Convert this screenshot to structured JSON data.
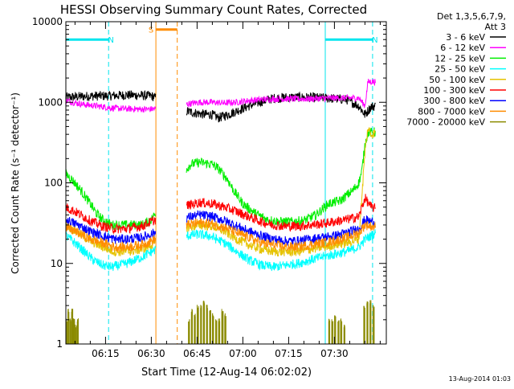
{
  "chart_data": {
    "type": "line",
    "title": "HESSI Observing Summary Count Rates, Corrected",
    "xlabel": "Start Time (12-Aug-14 06:02:02)",
    "ylabel": "Corrected Count Rate (s⁻¹ detector⁻¹)",
    "y_scale": "log",
    "ylim": [
      1,
      10000
    ],
    "xlim_minutes_after_start": [
      0,
      105
    ],
    "start_time_label": "06:02:02",
    "x_ticks": [
      {
        "label": "06:15",
        "minute": 13
      },
      {
        "label": "06:30",
        "minute": 28
      },
      {
        "label": "06:45",
        "minute": 43
      },
      {
        "label": "07:00",
        "minute": 58
      },
      {
        "label": "07:15",
        "minute": 73
      },
      {
        "label": "07:30",
        "minute": 88
      }
    ],
    "y_ticks": [
      {
        "label": "1",
        "value": 1
      },
      {
        "label": "10",
        "value": 10
      },
      {
        "label": "100",
        "value": 100
      },
      {
        "label": "1000",
        "value": 1000
      },
      {
        "label": "10000",
        "value": 10000
      }
    ],
    "legend_header": [
      "Det 1,3,5,6,7,9,",
      "Att 3"
    ],
    "legend_position": "right",
    "markers": [
      {
        "label": "N",
        "color": "#00e5ee",
        "bar_minutes": [
          0,
          14
        ],
        "bar_value": 6000,
        "dashed_line_minute": 14,
        "solid_line_minute": 0
      },
      {
        "label": "N",
        "color": "#00e5ee",
        "bar_minutes": [
          85,
          100.5
        ],
        "bar_value": 6000,
        "dashed_line_minute": 100.5,
        "solid_line_minute": 85
      },
      {
        "label": "S",
        "color": "#ff8c00",
        "bar_minutes": [
          29.5,
          36.5
        ],
        "bar_value": 8000,
        "dashed_line_minute": 36.5,
        "solid_line_minute": 29.5
      }
    ],
    "data_gap_minutes": [
      29.5,
      39.5
    ],
    "series": [
      {
        "name": "3 - 6 keV",
        "color": "#000000",
        "x": [
          0,
          5,
          10,
          14,
          20,
          28,
          39.5,
          42,
          45,
          48,
          50,
          53,
          56,
          60,
          64,
          68,
          72,
          76,
          80,
          84,
          88,
          92,
          96,
          98,
          100,
          101.5
        ],
        "y": [
          1150,
          1180,
          1200,
          1200,
          1230,
          1200,
          780,
          740,
          710,
          700,
          640,
          700,
          780,
          900,
          1020,
          1120,
          1150,
          1150,
          1150,
          1130,
          1110,
          1080,
          900,
          700,
          880,
          900
        ]
      },
      {
        "name": "6 - 12 keV",
        "color": "#ff00ff",
        "x": [
          0,
          5,
          10,
          15,
          20,
          25,
          28,
          39.5,
          44,
          48,
          52,
          56,
          60,
          64,
          68,
          72,
          76,
          80,
          84,
          88,
          92,
          96,
          98,
          99,
          100,
          101.5
        ],
        "y": [
          1050,
          950,
          900,
          850,
          830,
          820,
          820,
          950,
          1000,
          1000,
          980,
          1000,
          1050,
          1080,
          1100,
          1100,
          1100,
          1100,
          1120,
          1130,
          1130,
          1130,
          900,
          1800,
          1800,
          1800
        ]
      },
      {
        "name": "12 - 25 keV",
        "color": "#00ee00",
        "x": [
          0,
          2,
          5,
          8,
          10,
          12,
          15,
          20,
          25,
          28,
          39.5,
          41,
          44,
          48,
          50,
          53,
          55,
          58,
          62,
          66,
          70,
          74,
          78,
          82,
          86,
          90,
          92,
          94,
          96,
          97,
          98,
          99,
          100,
          101.5
        ],
        "y": [
          130,
          110,
          80,
          55,
          42,
          35,
          30,
          30,
          30,
          35,
          150,
          170,
          180,
          170,
          150,
          110,
          80,
          55,
          42,
          35,
          33,
          33,
          34,
          40,
          55,
          60,
          70,
          80,
          100,
          140,
          300,
          420,
          420,
          430
        ]
      },
      {
        "name": "25 - 50 keV",
        "color": "#00ffff",
        "x": [
          0,
          3,
          6,
          9,
          12,
          15,
          20,
          25,
          28,
          39.5,
          43,
          47,
          52,
          56,
          60,
          64,
          68,
          72,
          76,
          80,
          84,
          88,
          92,
          96,
          98,
          100,
          101.5
        ],
        "y": [
          22,
          18,
          14,
          11,
          9.5,
          9,
          10,
          12,
          14,
          22,
          23,
          22,
          18,
          14,
          11,
          9.5,
          9,
          9.5,
          10,
          11,
          12,
          13,
          14,
          16,
          20,
          22,
          24
        ]
      },
      {
        "name": "50 - 100 keV",
        "color": "#e6c300",
        "x": [
          0,
          4,
          8,
          12,
          16,
          20,
          25,
          28,
          39.5,
          44,
          48,
          52,
          56,
          60,
          64,
          68,
          72,
          76,
          80,
          84,
          88,
          92,
          96,
          98,
          99,
          100,
          101.5
        ],
        "y": [
          30,
          24,
          19,
          16,
          14,
          14,
          15,
          17,
          28,
          30,
          29,
          25,
          20,
          17,
          15,
          14,
          14,
          14,
          15,
          16,
          17,
          18,
          20,
          240,
          480,
          400,
          420
        ]
      },
      {
        "name": "100 - 300 keV",
        "color": "#ff0000",
        "x": [
          0,
          4,
          8,
          12,
          16,
          20,
          25,
          28,
          39.5,
          44,
          48,
          52,
          56,
          60,
          64,
          68,
          72,
          76,
          80,
          84,
          88,
          92,
          96,
          98,
          100,
          101.5
        ],
        "y": [
          50,
          42,
          34,
          29,
          27,
          27,
          29,
          33,
          52,
          57,
          55,
          50,
          44,
          38,
          33,
          30,
          29,
          29,
          30,
          31,
          33,
          35,
          38,
          65,
          50,
          48
        ]
      },
      {
        "name": "300 - 800 keV",
        "color": "#0000ff",
        "x": [
          0,
          4,
          8,
          12,
          16,
          20,
          25,
          28,
          39.5,
          44,
          48,
          52,
          56,
          60,
          64,
          68,
          72,
          76,
          80,
          84,
          88,
          92,
          96,
          98,
          100,
          101.5
        ],
        "y": [
          35,
          30,
          25,
          22,
          20,
          20,
          21,
          23,
          37,
          40,
          38,
          34,
          29,
          25,
          22,
          20,
          19,
          19,
          20,
          21,
          22,
          24,
          27,
          35,
          33,
          32
        ]
      },
      {
        "name": "800 - 7000 keV",
        "color": "#ff8c00",
        "x": [
          0,
          4,
          8,
          12,
          16,
          20,
          25,
          28,
          39.5,
          44,
          48,
          52,
          56,
          60,
          64,
          68,
          72,
          76,
          80,
          84,
          88,
          92,
          96,
          98,
          100,
          101.5
        ],
        "y": [
          28,
          24,
          20,
          18,
          16,
          16,
          17,
          19,
          30,
          32,
          31,
          28,
          24,
          21,
          18,
          17,
          16,
          16,
          17,
          18,
          19,
          21,
          24,
          30,
          29,
          28
        ]
      },
      {
        "name": "7000 - 20000 keV",
        "color": "#8b8b00",
        "bars": [
          [
            0.0,
            1.9
          ],
          [
            0.6,
            2.5
          ],
          [
            1.2,
            1.9
          ],
          [
            1.8,
            2.5
          ],
          [
            2.4,
            1.9
          ],
          [
            3.0,
            1.6
          ],
          [
            3.6,
            1.9
          ],
          [
            40.0,
            1.9
          ],
          [
            41.0,
            2.5
          ],
          [
            42.0,
            2.2
          ],
          [
            43.0,
            2.8
          ],
          [
            44.0,
            2.8
          ],
          [
            45.0,
            3.2
          ],
          [
            46.0,
            2.8
          ],
          [
            47.0,
            2.5
          ],
          [
            48.0,
            2.2
          ],
          [
            49.0,
            1.9
          ],
          [
            50.0,
            1.9
          ],
          [
            51.0,
            2.5
          ],
          [
            52.0,
            2.2
          ],
          [
            86.0,
            1.9
          ],
          [
            87.0,
            1.9
          ],
          [
            88.0,
            2.2
          ],
          [
            89.0,
            1.9
          ],
          [
            90.0,
            1.9
          ],
          [
            91.0,
            1.6
          ],
          [
            97.5,
            2.8
          ],
          [
            98.5,
            3.2
          ],
          [
            99.5,
            3.2
          ],
          [
            100.5,
            2.8
          ]
        ]
      }
    ]
  },
  "footer_date": "13-Aug-2014 01:03"
}
